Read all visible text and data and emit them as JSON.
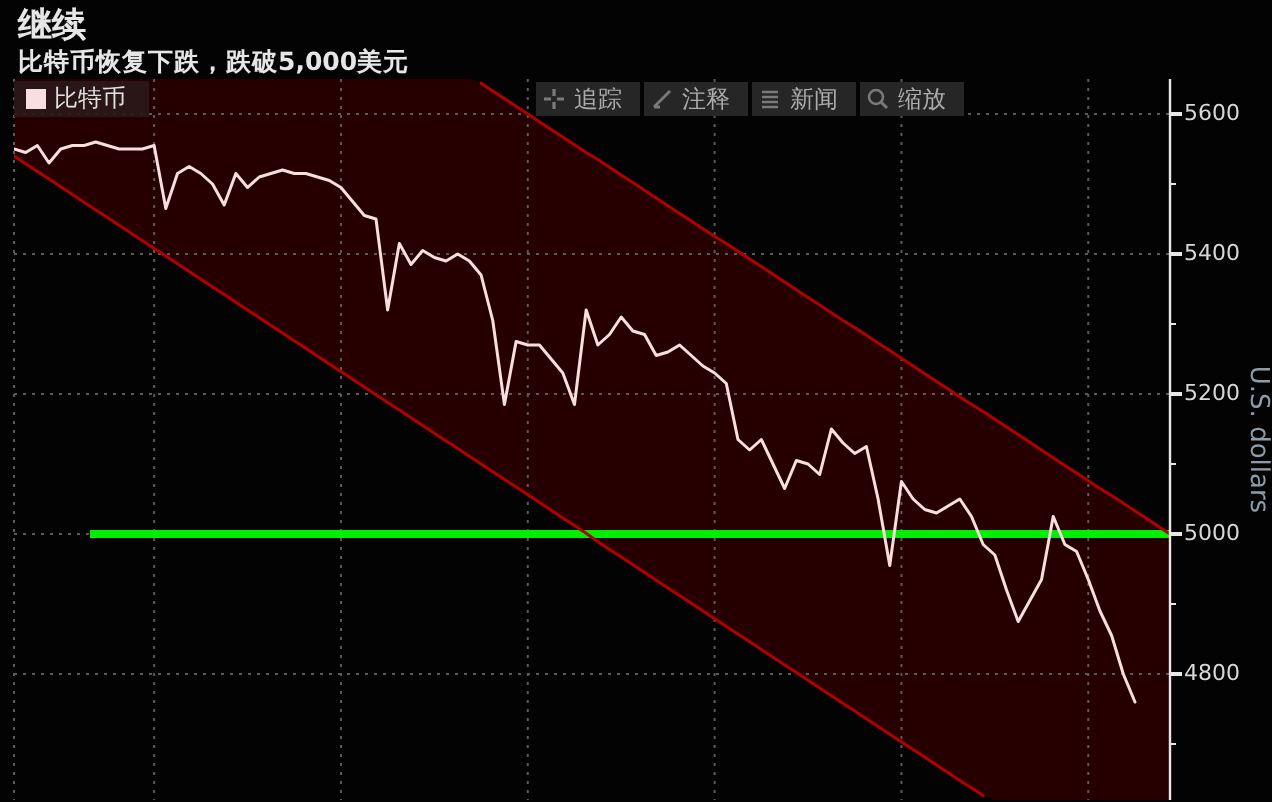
{
  "chart_data": {
    "type": "line",
    "title": "继续",
    "subtitle": "比特币恢复下跌，跌破5,000美元",
    "ylabel": "U.S. dollars",
    "annotations": [
      "追踪",
      "注释",
      "新闻",
      "缩放"
    ],
    "categories": [
      null,
      null,
      null,
      null,
      null,
      null,
      null,
      null,
      null,
      null,
      null,
      null,
      null,
      null,
      null,
      null,
      null,
      null,
      null,
      null,
      null,
      null,
      null,
      null,
      null,
      null,
      null,
      null,
      null,
      null,
      null,
      null,
      null,
      null,
      null,
      null,
      null,
      null,
      null,
      null,
      null,
      null,
      null,
      null,
      null,
      null,
      null,
      null,
      null,
      null,
      null,
      null,
      null,
      null,
      null,
      null,
      null,
      null,
      null,
      null,
      null,
      null,
      null,
      null,
      null,
      null,
      null,
      null,
      null,
      null,
      null,
      null,
      null,
      null,
      null,
      null,
      null,
      null,
      null,
      null,
      null,
      null,
      null,
      null,
      null,
      null,
      null,
      null,
      null,
      null,
      null,
      null,
      null,
      null,
      null,
      null,
      null,
      null,
      null,
      null
    ],
    "series": [
      {
        "name": "比特币",
        "color": "#f8dede",
        "values": [
          5550,
          5545,
          5555,
          5530,
          5550,
          5555,
          5555,
          5560,
          5555,
          5550,
          5550,
          5550,
          5555,
          5465,
          5515,
          5525,
          5515,
          5500,
          5470,
          5515,
          5495,
          5510,
          5515,
          5520,
          5515,
          5515,
          5510,
          5505,
          5495,
          5475,
          5455,
          5450,
          5320,
          5415,
          5385,
          5405,
          5395,
          5390,
          5400,
          5390,
          5370,
          5305,
          5185,
          5275,
          5270,
          5270,
          5250,
          5230,
          5185,
          5320,
          5270,
          5285,
          5310,
          5290,
          5285,
          5255,
          5260,
          5270,
          5255,
          5240,
          5230,
          5215,
          5135,
          5120,
          5135,
          5100,
          5065,
          5105,
          5100,
          5085,
          5150,
          5130,
          5115,
          5125,
          5050,
          4955,
          5075,
          5050,
          5035,
          5030,
          5040,
          5050,
          5025,
          4985,
          4970,
          4920,
          4875,
          4905,
          4935,
          5025,
          4985,
          4975,
          4935,
          4890,
          4855,
          4800,
          4760,
          null,
          null,
          null
        ],
        "lower": [
          5540,
          5529,
          5518,
          5507,
          5496,
          5485,
          5474,
          5463,
          5452,
          5441,
          5430,
          5419,
          5408,
          5397,
          5386,
          5375,
          5364,
          5353,
          5342,
          5331,
          5320,
          5309,
          5298,
          5287,
          5276,
          5265,
          5254,
          5243,
          5232,
          5221,
          5210,
          5199,
          5188,
          5177,
          5166,
          5155,
          5144,
          5133,
          5122,
          5111,
          5100,
          5089,
          5078,
          5067,
          5056,
          5045,
          5034,
          5023,
          5012,
          5001,
          4989,
          4978,
          4967,
          4956,
          4945,
          4934,
          4923,
          4912,
          4901,
          4890,
          4879,
          4868,
          4857,
          4846,
          4835,
          4824,
          4813,
          4802,
          4791,
          4780,
          4769,
          4758,
          4747,
          4736,
          4725,
          4714,
          4703,
          4692,
          4681,
          4670,
          4659,
          4648,
          4637,
          4626,
          4620,
          4620,
          4620,
          4620,
          4620,
          4620,
          4620,
          4620,
          4620,
          4620,
          4620,
          4620,
          4620,
          4620,
          4620,
          4620
        ],
        "upper": [
          5650,
          5650,
          5650,
          5650,
          5650,
          5650,
          5650,
          5650,
          5650,
          5650,
          5650,
          5650,
          5650,
          5650,
          5650,
          5650,
          5650,
          5650,
          5650,
          5650,
          5650,
          5650,
          5650,
          5650,
          5650,
          5650,
          5650,
          5650,
          5650,
          5650,
          5650,
          5650,
          5650,
          5650,
          5650,
          5650,
          5650,
          5650,
          5650,
          5650,
          5644,
          5633,
          5622,
          5611,
          5600,
          5589,
          5578,
          5567,
          5556,
          5545,
          5535,
          5524,
          5513,
          5502,
          5491,
          5480,
          5469,
          5458,
          5447,
          5436,
          5425,
          5415,
          5404,
          5393,
          5382,
          5371,
          5360,
          5349,
          5338,
          5327,
          5316,
          5305,
          5295,
          5284,
          5273,
          5262,
          5251,
          5240,
          5229,
          5218,
          5207,
          5196,
          5185,
          5175,
          5164,
          5153,
          5142,
          5131,
          5120,
          5109,
          5098,
          5087,
          5076,
          5065,
          5055,
          5044,
          5033,
          5022,
          5011,
          5000
        ]
      },
      {
        "type": "line",
        "color": "#b00000",
        "values": [
          null,
          null,
          null,
          null,
          null,
          null,
          null,
          null,
          null,
          null,
          null,
          null,
          null,
          null,
          null,
          null,
          null,
          null,
          null,
          null,
          null,
          null,
          null,
          null,
          null,
          null,
          null,
          null,
          null,
          null,
          null,
          null,
          null,
          null,
          null,
          null,
          null,
          null,
          null,
          null,
          5644,
          5633,
          5622,
          5611,
          5600,
          5589,
          5578,
          5567,
          5556,
          5545,
          5535,
          5524,
          5513,
          5502,
          5491,
          5480,
          5469,
          5458,
          5447,
          5436,
          5425,
          5415,
          5404,
          5393,
          5382,
          5371,
          5360,
          5349,
          5338,
          5327,
          5316,
          5305,
          5295,
          5284,
          5273,
          5262,
          5251,
          5240,
          5229,
          5218,
          5207,
          5196,
          5185,
          5175,
          5164,
          5153,
          5142,
          5131,
          5120,
          5109,
          5098,
          5087,
          5076,
          5065,
          5055,
          5044,
          5033,
          5022,
          5011,
          5000
        ]
      },
      {
        "type": "line",
        "color": "#b00000",
        "values": [
          5540,
          5529,
          5518,
          5507,
          5496,
          5485,
          5474,
          5463,
          5452,
          5441,
          5430,
          5419,
          5408,
          5397,
          5386,
          5375,
          5364,
          5353,
          5342,
          5331,
          5320,
          5309,
          5298,
          5287,
          5276,
          5265,
          5254,
          5243,
          5232,
          5221,
          5210,
          5199,
          5188,
          5177,
          5166,
          5155,
          5144,
          5133,
          5122,
          5111,
          5100,
          5089,
          5078,
          5067,
          5056,
          5045,
          5034,
          5023,
          5012,
          5001,
          4989,
          4978,
          4967,
          4956,
          4945,
          4934,
          4923,
          4912,
          4901,
          4890,
          4879,
          4868,
          4857,
          4846,
          4835,
          4824,
          4813,
          4802,
          4791,
          4780,
          4769,
          4758,
          4747,
          4736,
          4725,
          4714,
          4703,
          4692,
          4681,
          4670,
          4659,
          4648,
          4637,
          4626,
          null,
          null,
          null,
          null,
          null,
          null,
          null,
          null,
          null,
          null,
          null,
          null,
          null,
          null,
          null,
          null
        ]
      }
    ],
    "ylim": [
      4620,
      5650
    ],
    "yticks": [
      {
        "value": 4700,
        "label": null
      },
      4800,
      {
        "value": 4900,
        "label": null
      },
      5000,
      {
        "value": 5100,
        "label": null
      },
      5200,
      {
        "value": 5300,
        "label": null
      },
      5400,
      {
        "value": 5500,
        "label": null
      },
      5600
    ],
    "ref_lines": [
      {
        "axis": "y",
        "value": 5000,
        "color": "#00ee00"
      }
    ],
    "grid": true,
    "legend": "top left"
  }
}
